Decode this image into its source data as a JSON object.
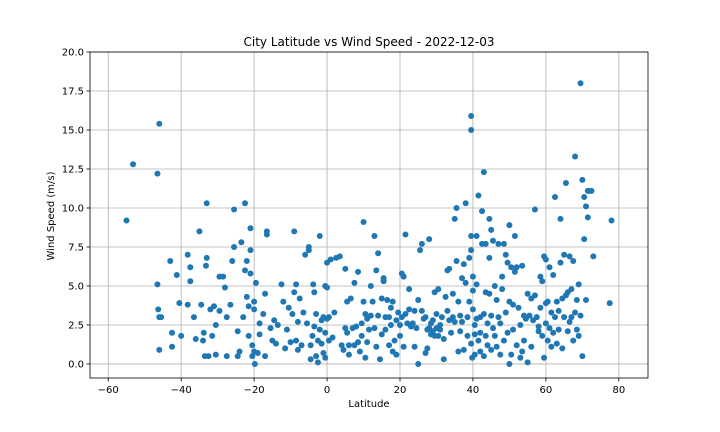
{
  "chart_data": {
    "type": "scatter",
    "title": "City Latitude vs Wind Speed - 2022-12-03",
    "xlabel": "Latitude",
    "ylabel": "Wind Speed (m/s)",
    "xlim": [
      -65,
      88
    ],
    "ylim": [
      -0.9,
      20
    ],
    "xticks": [
      -60,
      -40,
      -20,
      0,
      20,
      40,
      60,
      80
    ],
    "xtick_labels": [
      "−60",
      "−40",
      "−20",
      "0",
      "20",
      "40",
      "60",
      "80"
    ],
    "yticks": [
      0,
      2.5,
      5,
      7.5,
      10,
      12.5,
      15,
      17.5,
      20
    ],
    "ytick_labels": [
      "0.0",
      "2.5",
      "5.0",
      "7.5",
      "10.0",
      "12.5",
      "15.0",
      "17.5",
      "20.0"
    ],
    "grid": true,
    "marker_color": "#1f77b4",
    "points": [
      [
        -55,
        9.2
      ],
      [
        -53.2,
        12.8
      ],
      [
        -46.5,
        12.2
      ],
      [
        -46,
        15.4
      ],
      [
        -46.3,
        3.5
      ],
      [
        -46.5,
        5.1
      ],
      [
        -46,
        3.0
      ],
      [
        -45.5,
        3.0
      ],
      [
        -46,
        0.9
      ],
      [
        -43,
        6.6
      ],
      [
        -42.5,
        2.0
      ],
      [
        -42.5,
        1.1
      ],
      [
        -41.2,
        5.7
      ],
      [
        -40.5,
        3.9
      ],
      [
        -40,
        1.8
      ],
      [
        -38.2,
        3.8
      ],
      [
        -38.2,
        7.0
      ],
      [
        -37.5,
        6.2
      ],
      [
        -37.5,
        5.3
      ],
      [
        -36.5,
        3.0
      ],
      [
        -36,
        1.6
      ],
      [
        -35,
        8.5
      ],
      [
        -34.5,
        3.8
      ],
      [
        -34,
        1.5
      ],
      [
        -33.8,
        2.0
      ],
      [
        -33.2,
        6.3
      ],
      [
        -33,
        10.3
      ],
      [
        -33,
        6.8
      ],
      [
        -33.5,
        0.5
      ],
      [
        -32.5,
        0.5
      ],
      [
        -32,
        3.5
      ],
      [
        -31.5,
        1.8
      ],
      [
        -31,
        3.7
      ],
      [
        -30.5,
        0.6
      ],
      [
        -30.5,
        2.5
      ],
      [
        -29.5,
        3.4
      ],
      [
        -29.5,
        5.6
      ],
      [
        -28.5,
        5.6
      ],
      [
        -28,
        4.9
      ],
      [
        -27.5,
        0.5
      ],
      [
        -27.5,
        3.0
      ],
      [
        -26.5,
        3.8
      ],
      [
        -26,
        6.6
      ],
      [
        -25.5,
        9.9
      ],
      [
        -25.5,
        7.5
      ],
      [
        -24.5,
        2.1
      ],
      [
        -24.5,
        0.5
      ],
      [
        -24,
        0.8
      ],
      [
        -23.5,
        7.8
      ],
      [
        -23,
        3.0
      ],
      [
        -22.5,
        6.0
      ],
      [
        -22.5,
        10.3
      ],
      [
        -22,
        6.6
      ],
      [
        -22,
        4.3
      ],
      [
        -21.5,
        1.8
      ],
      [
        -21.5,
        3.7
      ],
      [
        -21,
        7.3
      ],
      [
        -21,
        8.7
      ],
      [
        -21,
        5.8
      ],
      [
        -20.5,
        0.5
      ],
      [
        -20.5,
        1.2
      ],
      [
        -20,
        3.5
      ],
      [
        -20,
        0.8
      ],
      [
        -20,
        4.0
      ],
      [
        -19.8,
        0.0
      ],
      [
        -19.5,
        5.2
      ],
      [
        -19,
        0.7
      ],
      [
        -18.5,
        2.6
      ],
      [
        -18.5,
        1.9
      ],
      [
        -17.5,
        3.2
      ],
      [
        -17,
        4.5
      ],
      [
        -17,
        0.5
      ],
      [
        -16.5,
        8.5
      ],
      [
        -16.5,
        8.3
      ],
      [
        -15.5,
        2.3
      ],
      [
        -15,
        1.5
      ],
      [
        -14.5,
        2.8
      ],
      [
        -14,
        1.3
      ],
      [
        -13.5,
        2.5
      ],
      [
        -12.5,
        5.1
      ],
      [
        -12,
        4.0
      ],
      [
        -11.5,
        1.0
      ],
      [
        -11,
        2.2
      ],
      [
        -10.5,
        3.6
      ],
      [
        -10,
        1.4
      ],
      [
        -9.5,
        3.2
      ],
      [
        -9,
        8.5
      ],
      [
        -9,
        4.6
      ],
      [
        -8.5,
        1.5
      ],
      [
        -8.5,
        5.1
      ],
      [
        -8,
        0.9
      ],
      [
        -8,
        2.7
      ],
      [
        -7.5,
        4.2
      ],
      [
        -7,
        1.2
      ],
      [
        -6.5,
        3.3
      ],
      [
        -6,
        7.0
      ],
      [
        -5.5,
        2.6
      ],
      [
        -5,
        7.3
      ],
      [
        -5,
        7.5
      ],
      [
        -4.5,
        1.2
      ],
      [
        -4.5,
        0.3
      ],
      [
        -4,
        1.8
      ],
      [
        -3.8,
        5.1
      ],
      [
        -3.5,
        4.6
      ],
      [
        -3.5,
        2.4
      ],
      [
        -3,
        3.2
      ],
      [
        -3,
        0.5
      ],
      [
        -2.5,
        0.1
      ],
      [
        -2.5,
        1.5
      ],
      [
        -2,
        8.2
      ],
      [
        -2,
        2.2
      ],
      [
        -1.5,
        2.8
      ],
      [
        -1.5,
        1.3
      ],
      [
        -1,
        3.0
      ],
      [
        -1,
        0.7
      ],
      [
        -0.5,
        5.0
      ],
      [
        -0.5,
        2.0
      ],
      [
        -0.5,
        0.4
      ],
      [
        0,
        6.5
      ],
      [
        0,
        4.9
      ],
      [
        0,
        2.9
      ],
      [
        0.5,
        1.5
      ],
      [
        0.5,
        3.0
      ],
      [
        1,
        6.7
      ],
      [
        1.5,
        1.7
      ],
      [
        2,
        3.3
      ],
      [
        2.5,
        6.8
      ],
      [
        3.5,
        6.9
      ],
      [
        4,
        1.2
      ],
      [
        4.5,
        0.9
      ],
      [
        5,
        2.3
      ],
      [
        5,
        6.1
      ],
      [
        5.5,
        4.0
      ],
      [
        5.5,
        2.0
      ],
      [
        6,
        1.2
      ],
      [
        6,
        0.6
      ],
      [
        6.5,
        4.2
      ],
      [
        7,
        2.3
      ],
      [
        7.5,
        1.2
      ],
      [
        7.5,
        5.2
      ],
      [
        8,
        2.4
      ],
      [
        8.5,
        5.9
      ],
      [
        8.5,
        1.4
      ],
      [
        9,
        0.8
      ],
      [
        9.5,
        2.6
      ],
      [
        9.5,
        1.8
      ],
      [
        10,
        9.1
      ],
      [
        10,
        4.0
      ],
      [
        10.5,
        3.2
      ],
      [
        10.5,
        0.4
      ],
      [
        11,
        2.9
      ],
      [
        11,
        1.4
      ],
      [
        11.5,
        2.2
      ],
      [
        12,
        3.1
      ],
      [
        12,
        5.0
      ],
      [
        12.5,
        4.0
      ],
      [
        13,
        8.2
      ],
      [
        13,
        2.3
      ],
      [
        13.5,
        6.0
      ],
      [
        13.5,
        1.1
      ],
      [
        14,
        7.1
      ],
      [
        14,
        3.1
      ],
      [
        14.5,
        0.3
      ],
      [
        15,
        4.2
      ],
      [
        15,
        1.9
      ],
      [
        15.5,
        5.5
      ],
      [
        15.5,
        5.3
      ],
      [
        16,
        3.0
      ],
      [
        16,
        2.2
      ],
      [
        16.5,
        4.1
      ],
      [
        17,
        1.2
      ],
      [
        17,
        3.0
      ],
      [
        17.5,
        2.5
      ],
      [
        17.5,
        3.6
      ],
      [
        18,
        0.8
      ],
      [
        18,
        4.0
      ],
      [
        18.5,
        1.5
      ],
      [
        19,
        2.8
      ],
      [
        19,
        0.6
      ],
      [
        19.5,
        3.3
      ],
      [
        20,
        1.8
      ],
      [
        20,
        2.5
      ],
      [
        20.5,
        5.8
      ],
      [
        20.5,
        3.0
      ],
      [
        21,
        1.1
      ],
      [
        21,
        5.6
      ],
      [
        21.5,
        3.2
      ],
      [
        21.5,
        8.3
      ],
      [
        22,
        2.6
      ],
      [
        22.5,
        4.8
      ],
      [
        22.5,
        3.5
      ],
      [
        23,
        2.4
      ],
      [
        23.5,
        2.6
      ],
      [
        24,
        3.4
      ],
      [
        24,
        1.1
      ],
      [
        24.5,
        2.3
      ],
      [
        25,
        0.0
      ],
      [
        25,
        4.1
      ],
      [
        25.5,
        7.3
      ],
      [
        26,
        7.7
      ],
      [
        26,
        3.4
      ],
      [
        26.5,
        2.9
      ],
      [
        27,
        0.7
      ],
      [
        27,
        3.0
      ],
      [
        27.5,
        2.2
      ],
      [
        27.5,
        1.0
      ],
      [
        28,
        2.3
      ],
      [
        28,
        8.0
      ],
      [
        28.5,
        2.6
      ],
      [
        28.5,
        1.9
      ],
      [
        29,
        2.1
      ],
      [
        29,
        2.8
      ],
      [
        29.5,
        4.6
      ],
      [
        29.5,
        1.8
      ],
      [
        30,
        2.3
      ],
      [
        30,
        3.2
      ],
      [
        30.5,
        4.8
      ],
      [
        30.5,
        1.8
      ],
      [
        31,
        2.5
      ],
      [
        31,
        2.2
      ],
      [
        31.5,
        3.0
      ],
      [
        32,
        0.3
      ],
      [
        32,
        1.6
      ],
      [
        32.5,
        4.3
      ],
      [
        33,
        3.4
      ],
      [
        33,
        6.0
      ],
      [
        33.5,
        2.8
      ],
      [
        33.5,
        6.1
      ],
      [
        34,
        2.0
      ],
      [
        34.5,
        4.5
      ],
      [
        34.5,
        3.0
      ],
      [
        35,
        2.7
      ],
      [
        35,
        9.3
      ],
      [
        35.5,
        10.0
      ],
      [
        35.5,
        6.6
      ],
      [
        36,
        4.0
      ],
      [
        36,
        0.8
      ],
      [
        36.5,
        3.1
      ],
      [
        36.5,
        2.1
      ],
      [
        37,
        5.5
      ],
      [
        37,
        2.7
      ],
      [
        37.5,
        6.4
      ],
      [
        37.5,
        0.9
      ],
      [
        38,
        10.3
      ],
      [
        38,
        5.2
      ],
      [
        38.5,
        1.8
      ],
      [
        38.5,
        3.0
      ],
      [
        39,
        6.8
      ],
      [
        39,
        4.0
      ],
      [
        39.5,
        15.9
      ],
      [
        39.5,
        15.0
      ],
      [
        39.5,
        8.2
      ],
      [
        39.5,
        7.3
      ],
      [
        39.5,
        1.3
      ],
      [
        39.8,
        0.4
      ],
      [
        40,
        5.6
      ],
      [
        40,
        4.7
      ],
      [
        40,
        3.5
      ],
      [
        40.5,
        2.5
      ],
      [
        40.5,
        0.6
      ],
      [
        40.5,
        1.9
      ],
      [
        41,
        8.2
      ],
      [
        41,
        2.9
      ],
      [
        41,
        5.1
      ],
      [
        41.5,
        10.8
      ],
      [
        41.5,
        1.5
      ],
      [
        42,
        3.0
      ],
      [
        42,
        0.8
      ],
      [
        42,
        2.0
      ],
      [
        42.5,
        9.8
      ],
      [
        42.5,
        7.7
      ],
      [
        43,
        12.3
      ],
      [
        43,
        3.2
      ],
      [
        43,
        0.5
      ],
      [
        43.5,
        7.7
      ],
      [
        43.5,
        4.6
      ],
      [
        43.5,
        1.8
      ],
      [
        44,
        1.2
      ],
      [
        44,
        2.6
      ],
      [
        44.5,
        9.3
      ],
      [
        44.5,
        6.8
      ],
      [
        44.5,
        4.5
      ],
      [
        45,
        8.6
      ],
      [
        45,
        3.1
      ],
      [
        45,
        0.9
      ],
      [
        45.5,
        7.9
      ],
      [
        45.5,
        2.3
      ],
      [
        46,
        1.8
      ],
      [
        46,
        5.0
      ],
      [
        46.5,
        4.1
      ],
      [
        46.5,
        1.1
      ],
      [
        47,
        7.7
      ],
      [
        47,
        3.0
      ],
      [
        47.5,
        0.6
      ],
      [
        47.5,
        2.6
      ],
      [
        48,
        4.8
      ],
      [
        48,
        5.6
      ],
      [
        48.5,
        7.7
      ],
      [
        48.5,
        1.5
      ],
      [
        49,
        3.3
      ],
      [
        49,
        7.0
      ],
      [
        49.5,
        2.0
      ],
      [
        49.5,
        6.5
      ],
      [
        50,
        8.9
      ],
      [
        50,
        4.0
      ],
      [
        50,
        0.0
      ],
      [
        50.5,
        6.2
      ],
      [
        50.5,
        0.6
      ],
      [
        51,
        3.8
      ],
      [
        51,
        2.2
      ],
      [
        51.5,
        8.2
      ],
      [
        51.5,
        5.9
      ],
      [
        52,
        6.2
      ],
      [
        52,
        1.2
      ],
      [
        52.5,
        3.6
      ],
      [
        53,
        2.5
      ],
      [
        53,
        0.4
      ],
      [
        53.5,
        6.3
      ],
      [
        53.5,
        0.8
      ],
      [
        54,
        3.1
      ],
      [
        54,
        1.5
      ],
      [
        54.5,
        2.9
      ],
      [
        55,
        4.5
      ],
      [
        55,
        0.1
      ],
      [
        55.5,
        3.1
      ],
      [
        56,
        4.2
      ],
      [
        56,
        1.1
      ],
      [
        56.5,
        2.8
      ],
      [
        57,
        9.9
      ],
      [
        57,
        4.4
      ],
      [
        57.5,
        3.0
      ],
      [
        58,
        2.4
      ],
      [
        58,
        2.1
      ],
      [
        58.5,
        3.6
      ],
      [
        58.5,
        5.6
      ],
      [
        59,
        1.8
      ],
      [
        59,
        5.3
      ],
      [
        59.5,
        6.9
      ],
      [
        59.5,
        0.4
      ],
      [
        60,
        6.7
      ],
      [
        60,
        3.9
      ],
      [
        60,
        2.6
      ],
      [
        60.5,
        1.5
      ],
      [
        60.5,
        4.0
      ],
      [
        61,
        6.2
      ],
      [
        61,
        2.3
      ],
      [
        61.5,
        3.3
      ],
      [
        61.5,
        1.1
      ],
      [
        62,
        2.0
      ],
      [
        62,
        5.7
      ],
      [
        62.5,
        10.7
      ],
      [
        62.5,
        3.0
      ],
      [
        63,
        4.0
      ],
      [
        63,
        1.3
      ],
      [
        63.5,
        3.4
      ],
      [
        63.5,
        2.2
      ],
      [
        64,
        9.3
      ],
      [
        64,
        6.5
      ],
      [
        64.5,
        4.2
      ],
      [
        64.5,
        1.0
      ],
      [
        65,
        7.0
      ],
      [
        65,
        3.0
      ],
      [
        65.5,
        11.6
      ],
      [
        65.5,
        4.4
      ],
      [
        66,
        2.1
      ],
      [
        66,
        4.6
      ],
      [
        66.5,
        6.9
      ],
      [
        66.5,
        2.7
      ],
      [
        67,
        3.0
      ],
      [
        67,
        4.8
      ],
      [
        67.5,
        6.6
      ],
      [
        67.5,
        1.5
      ],
      [
        68,
        13.3
      ],
      [
        68,
        3.3
      ],
      [
        68.5,
        4.1
      ],
      [
        68.5,
        2.2
      ],
      [
        69,
        5.1
      ],
      [
        69,
        1.8
      ],
      [
        69.5,
        18.0
      ],
      [
        69.5,
        3.1
      ],
      [
        70,
        11.8
      ],
      [
        70,
        0.5
      ],
      [
        70.5,
        8.0
      ],
      [
        70.5,
        10.7
      ],
      [
        71,
        4.1
      ],
      [
        71,
        10.1
      ],
      [
        71.5,
        11.1
      ],
      [
        71.5,
        9.4
      ],
      [
        72,
        11.1
      ],
      [
        72.5,
        11.1
      ],
      [
        73,
        6.9
      ],
      [
        77.5,
        3.9
      ],
      [
        78,
        9.2
      ]
    ]
  }
}
